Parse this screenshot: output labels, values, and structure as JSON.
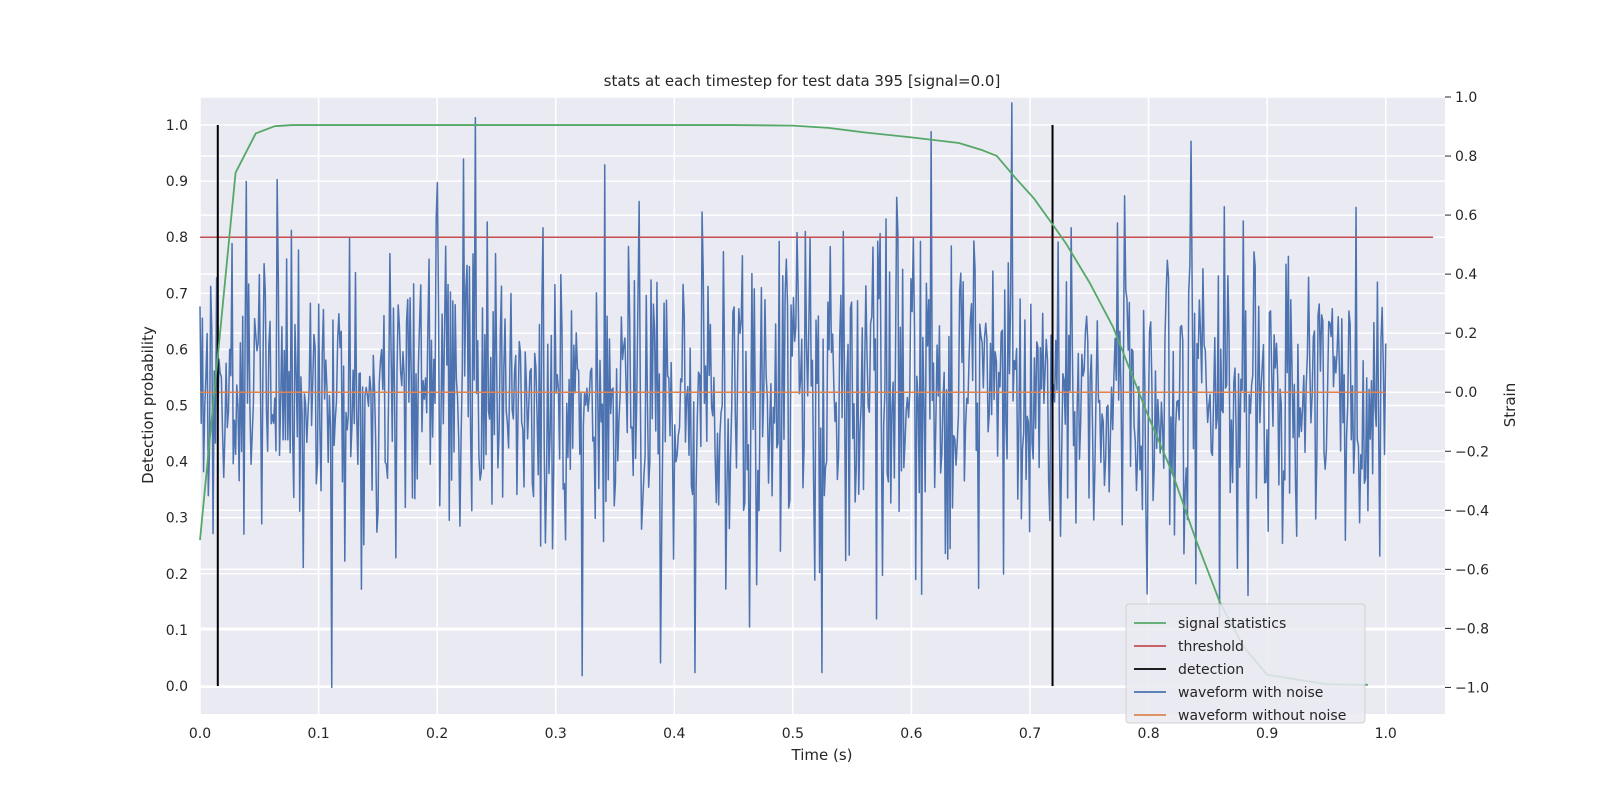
{
  "chart_data": {
    "type": "line",
    "title": "stats at each timestep for test data 395 [signal=0.0]",
    "xlabel": "Time (s)",
    "ylabel": "Detection probability",
    "y2label": "Strain",
    "xlim": [
      0.0,
      1.05
    ],
    "ylim": [
      -0.05,
      1.05
    ],
    "y2lim": [
      -1.09,
      1.0
    ],
    "xticks": [
      "0.0",
      "0.1",
      "0.2",
      "0.3",
      "0.4",
      "0.5",
      "0.6",
      "0.7",
      "0.8",
      "0.9",
      "1.0"
    ],
    "yticks": [
      "0.0",
      "0.1",
      "0.2",
      "0.3",
      "0.4",
      "0.5",
      "0.6",
      "0.7",
      "0.8",
      "0.9",
      "1.0"
    ],
    "y2ticks": [
      "1.0",
      "0.8",
      "0.6",
      "0.4",
      "0.2",
      "0.0",
      "−0.2",
      "−0.4",
      "−0.6",
      "−0.8",
      "−1.0"
    ],
    "grid": true,
    "legend_position": "lower-right",
    "colors": {
      "signal": "#55a868",
      "threshold": "#c44e52",
      "detection": "#000000",
      "noise": "#4c72b0",
      "clean": "#dd8452",
      "background": "#eaeaf2",
      "grid": "#ffffff"
    },
    "series": [
      {
        "name": "signal statistics",
        "axis": "left",
        "x": [
          0.0,
          0.03,
          0.047,
          0.063,
          0.078,
          0.094,
          0.2,
          0.3,
          0.4,
          0.45,
          0.5,
          0.53,
          0.56,
          0.6,
          0.64,
          0.66,
          0.672,
          0.688,
          0.703,
          0.72,
          0.73,
          0.75,
          0.77,
          0.8,
          0.82,
          0.84,
          0.86,
          0.88,
          0.9,
          0.95,
          0.985
        ],
        "y": [
          0.26,
          0.915,
          0.985,
          0.998,
          1.0,
          1.0,
          1.0,
          1.0,
          1.0,
          1.0,
          0.999,
          0.995,
          0.987,
          0.978,
          0.968,
          0.955,
          0.945,
          0.905,
          0.87,
          0.82,
          0.79,
          0.72,
          0.64,
          0.48,
          0.38,
          0.26,
          0.15,
          0.07,
          0.02,
          0.003,
          0.002
        ]
      },
      {
        "name": "threshold",
        "axis": "left",
        "x": [
          0.0,
          1.04
        ],
        "y": [
          0.8,
          0.8
        ]
      },
      {
        "name": "detection",
        "axis": "left",
        "x": [
          0.015,
          0.719
        ],
        "ymin": 0.0,
        "ymax": 1.0
      },
      {
        "name": "waveform with noise",
        "axis": "right",
        "x_start": 0.0,
        "x_end": 1.0,
        "n_points": 1000,
        "y_range": [
          -1.0,
          0.98
        ],
        "y_std": 0.27,
        "peaks": [
          {
            "x": 0.111,
            "y": -1.0
          },
          {
            "x": 0.322,
            "y": -0.96
          },
          {
            "x": 0.685,
            "y": 0.98
          },
          {
            "x": 0.836,
            "y": 0.85
          },
          {
            "x": 0.341,
            "y": 0.77
          },
          {
            "x": 0.065,
            "y": 0.72
          },
          {
            "x": 0.2,
            "y": 0.71
          }
        ]
      },
      {
        "name": "waveform without noise",
        "axis": "right",
        "x": [
          0.0,
          1.0
        ],
        "y": [
          0.0,
          0.0
        ]
      }
    ]
  }
}
